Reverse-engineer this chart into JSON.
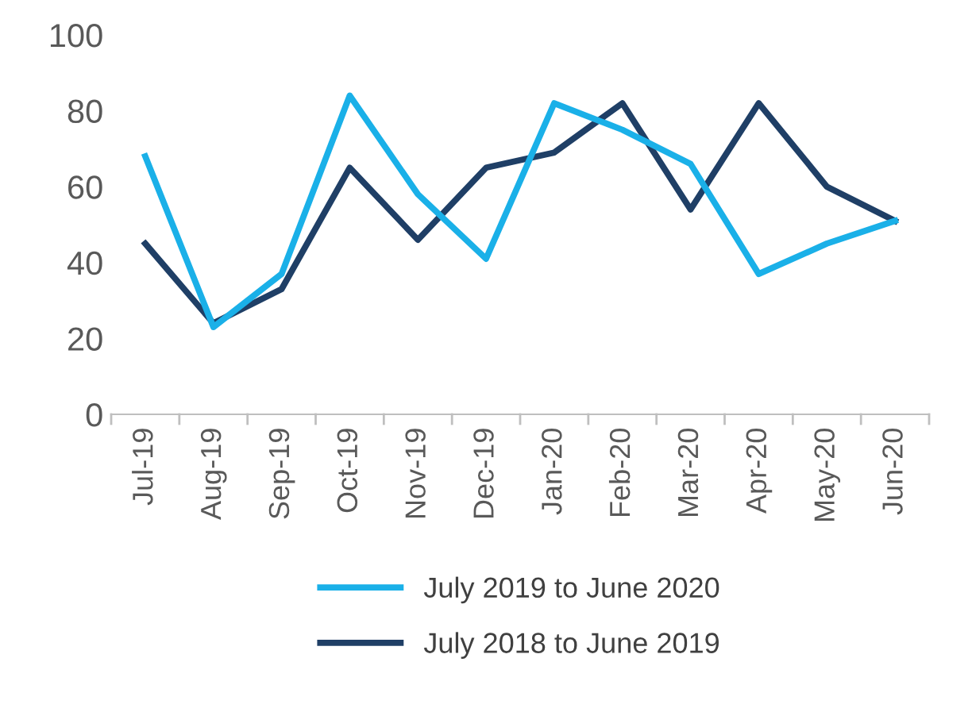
{
  "chart_data": {
    "type": "line",
    "categories": [
      "Jul-19",
      "Aug-19",
      "Sep-19",
      "Oct-19",
      "Nov-19",
      "Dec-19",
      "Jan-20",
      "Feb-20",
      "Mar-20",
      "Apr-20",
      "May-20",
      "Jun-20"
    ],
    "series": [
      {
        "name": "July 2019 to June 2020",
        "color": "#1ab0e8",
        "values": [
          68,
          23,
          37,
          84,
          58,
          41,
          82,
          75,
          66,
          37,
          45,
          51
        ]
      },
      {
        "name": "July 2018 to June 2019",
        "color": "#1f3f66",
        "values": [
          45,
          24,
          33,
          65,
          46,
          65,
          69,
          82,
          54,
          82,
          60,
          51
        ]
      }
    ],
    "ylim": [
      0,
      100
    ],
    "yticks": [
      0,
      20,
      40,
      60,
      80,
      100
    ],
    "grid": false,
    "legend": "bottom",
    "marker": "none",
    "line_style": "solid"
  }
}
